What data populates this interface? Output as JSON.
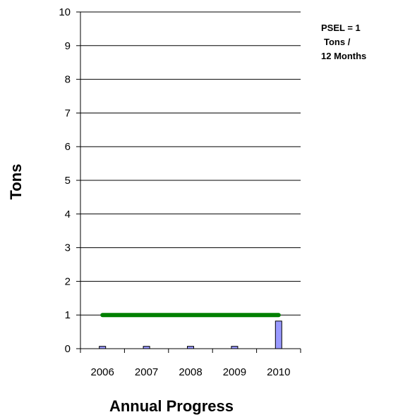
{
  "chart_data": {
    "type": "bar",
    "categories": [
      "2006",
      "2007",
      "2008",
      "2009",
      "2010"
    ],
    "series": [
      {
        "values": [
          0.07,
          0.07,
          0.07,
          0.07,
          0.82
        ],
        "color": "#9999ff"
      }
    ],
    "reference_line": {
      "value": 1,
      "color": "#008000"
    },
    "xlabel": "Annual Progress",
    "ylabel": "Tons",
    "ylim": [
      0,
      10
    ],
    "yticks": [
      "0",
      "1",
      "2",
      "3",
      "4",
      "5",
      "6",
      "7",
      "8",
      "9",
      "10"
    ],
    "grid": true,
    "annotation": [
      "PSEL = 1",
      "Tons /",
      "12 Months"
    ]
  }
}
